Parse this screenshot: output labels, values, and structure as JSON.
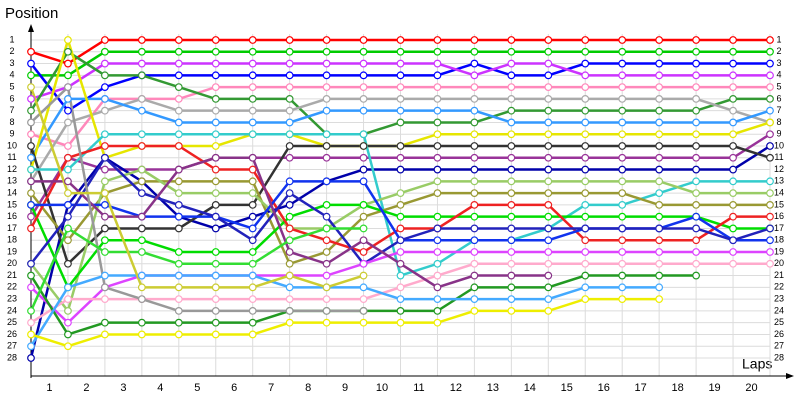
{
  "chart_data": {
    "type": "line",
    "y_label": "Position",
    "x_label": "Laps",
    "x": [
      0,
      1,
      2,
      3,
      4,
      5,
      6,
      7,
      8,
      9,
      10,
      11,
      12,
      13,
      14,
      15,
      16,
      17,
      18,
      19,
      20
    ],
    "xlim": [
      0,
      20
    ],
    "xticks": [
      1,
      2,
      3,
      4,
      5,
      6,
      7,
      8,
      9,
      10,
      11,
      12,
      13,
      14,
      15,
      16,
      17,
      18,
      19,
      20
    ],
    "ylim": [
      1,
      28
    ],
    "yticks": [
      1,
      2,
      3,
      4,
      5,
      6,
      7,
      8,
      9,
      10,
      11,
      12,
      13,
      14,
      15,
      16,
      17,
      18,
      19,
      20,
      21,
      22,
      23,
      24,
      25,
      26,
      27,
      28
    ],
    "y_reversed": true,
    "grid": true,
    "series": [
      {
        "color": "#ff0000",
        "values": [
          2,
          3,
          1,
          1,
          1,
          1,
          1,
          1,
          1,
          1,
          1,
          1,
          1,
          1,
          1,
          1,
          1,
          1,
          1,
          1,
          1
        ]
      },
      {
        "color": "#00cc00",
        "values": [
          4,
          4,
          2,
          2,
          2,
          2,
          2,
          2,
          2,
          2,
          2,
          2,
          2,
          2,
          2,
          2,
          2,
          2,
          2,
          2,
          2
        ]
      },
      {
        "color": "#0000ff",
        "values": [
          3,
          7,
          5,
          4,
          4,
          4,
          4,
          4,
          4,
          4,
          4,
          4,
          3,
          4,
          4,
          3,
          3,
          3,
          3,
          3,
          3
        ]
      },
      {
        "color": "#cc33ff",
        "values": [
          6,
          5,
          3,
          3,
          3,
          3,
          3,
          3,
          3,
          3,
          3,
          3,
          4,
          3,
          3,
          4,
          4,
          4,
          4,
          4,
          4
        ]
      },
      {
        "color": "#ff88bb",
        "values": [
          9,
          10,
          6,
          6,
          6,
          5,
          5,
          5,
          5,
          5,
          5,
          5,
          5,
          5,
          5,
          5,
          5,
          5,
          5,
          5,
          5
        ]
      },
      {
        "color": "#339933",
        "values": [
          7,
          2,
          4,
          4,
          5,
          6,
          6,
          6,
          9,
          9,
          8,
          8,
          8,
          7,
          7,
          7,
          7,
          7,
          7,
          6,
          6
        ]
      },
      {
        "color": "#aaaaaa",
        "values": [
          13,
          8,
          7,
          6,
          7,
          7,
          7,
          7,
          6,
          6,
          6,
          6,
          6,
          6,
          6,
          6,
          6,
          6,
          6,
          7,
          8
        ]
      },
      {
        "color": "#3399ff",
        "values": [
          11,
          6,
          6,
          7,
          8,
          8,
          8,
          8,
          7,
          7,
          7,
          7,
          7,
          8,
          8,
          8,
          8,
          8,
          8,
          8,
          7
        ]
      },
      {
        "color": "#e6e600",
        "values": [
          12,
          1,
          11,
          10,
          10,
          10,
          9,
          9,
          10,
          10,
          10,
          9,
          9,
          9,
          9,
          9,
          9,
          9,
          9,
          9,
          8
        ]
      },
      {
        "color": "#993399",
        "values": [
          16,
          11,
          12,
          12,
          12,
          11,
          11,
          11,
          11,
          11,
          11,
          11,
          11,
          11,
          11,
          11,
          11,
          11,
          11,
          11,
          9
        ]
      },
      {
        "color": "#0000aa",
        "values": [
          28,
          15,
          11,
          13,
          16,
          17,
          16,
          15,
          13,
          12,
          12,
          12,
          12,
          12,
          12,
          12,
          12,
          12,
          12,
          12,
          10
        ]
      },
      {
        "color": "#333333",
        "values": [
          10,
          20,
          17,
          17,
          17,
          15,
          15,
          10,
          10,
          10,
          10,
          10,
          10,
          10,
          10,
          10,
          10,
          10,
          10,
          10,
          11
        ]
      },
      {
        "color": "#33cccc",
        "values": [
          12,
          12,
          9,
          9,
          9,
          9,
          9,
          9,
          9,
          9,
          21,
          20,
          18,
          18,
          17,
          15,
          15,
          14,
          13,
          13,
          13
        ]
      },
      {
        "color": "#999933",
        "values": [
          14,
          18,
          14,
          13,
          13,
          13,
          13,
          20,
          19,
          16,
          15,
          14,
          14,
          14,
          14,
          14,
          14,
          15,
          15,
          15,
          15
        ]
      },
      {
        "color": "#99cc66",
        "values": [
          20,
          24,
          13,
          12,
          14,
          14,
          14,
          17,
          17,
          15,
          14,
          13,
          13,
          13,
          13,
          13,
          13,
          13,
          14,
          14,
          14
        ]
      },
      {
        "color": "#00dd00",
        "values": [
          15,
          22,
          18,
          18,
          19,
          19,
          19,
          16,
          15,
          15,
          16,
          16,
          16,
          16,
          16,
          16,
          16,
          16,
          16,
          17,
          17
        ]
      },
      {
        "color": "#ee2222",
        "values": [
          17,
          11,
          10,
          10,
          10,
          12,
          12,
          17,
          18,
          19,
          17,
          17,
          15,
          15,
          15,
          18,
          18,
          18,
          18,
          16,
          16
        ]
      },
      {
        "color": "#1133ee",
        "values": [
          15,
          15,
          15,
          16,
          16,
          16,
          17,
          13,
          13,
          13,
          18,
          18,
          18,
          18,
          18,
          17,
          17,
          17,
          16,
          18,
          18
        ]
      },
      {
        "color": "#2222bb",
        "values": [
          20,
          16,
          11,
          14,
          15,
          16,
          18,
          14,
          16,
          20,
          18,
          17,
          17,
          17,
          17,
          17,
          17,
          17,
          17,
          18,
          17
        ]
      },
      {
        "color": "#dd44ff",
        "values": [
          22,
          25,
          22,
          21,
          21,
          21,
          21,
          21,
          21,
          20,
          19,
          19,
          19,
          19,
          19,
          19,
          19,
          19,
          19,
          19,
          19
        ]
      },
      {
        "color": "#ffaacc",
        "values": [
          25,
          23,
          23,
          23,
          23,
          23,
          23,
          23,
          23,
          23,
          22,
          21,
          20,
          20,
          20,
          20,
          20,
          20,
          20,
          20,
          20
        ]
      },
      {
        "color": "#229922",
        "values": [
          21,
          26,
          25,
          25,
          25,
          25,
          25,
          24,
          24,
          24,
          24,
          24,
          22,
          22,
          22,
          21,
          21,
          21,
          21,
          null,
          null
        ]
      },
      {
        "color": "#44aaff",
        "values": [
          27,
          22,
          21,
          21,
          21,
          21,
          21,
          22,
          22,
          22,
          23,
          23,
          23,
          23,
          23,
          22,
          22,
          22,
          null,
          null,
          null
        ]
      },
      {
        "color": "#eeee00",
        "values": [
          26,
          27,
          26,
          26,
          26,
          26,
          26,
          25,
          25,
          25,
          25,
          25,
          24,
          24,
          24,
          23,
          23,
          23,
          null,
          null,
          null
        ]
      },
      {
        "color": "#883388",
        "values": [
          13,
          13,
          16,
          16,
          12,
          11,
          11,
          19,
          20,
          18,
          20,
          22,
          21,
          21,
          21,
          null,
          null,
          null,
          null,
          null,
          null
        ]
      },
      {
        "color": "#999999",
        "values": [
          8,
          5,
          22,
          23,
          24,
          24,
          24,
          24,
          24,
          24,
          null,
          null,
          null,
          null,
          null,
          null,
          null,
          null,
          null,
          null,
          null
        ]
      },
      {
        "color": "#33dd33",
        "values": [
          24,
          17,
          19,
          19,
          20,
          20,
          20,
          18,
          17,
          17,
          null,
          null,
          null,
          null,
          null,
          null,
          null,
          null,
          null,
          null,
          null
        ]
      },
      {
        "color": "#cccc33",
        "values": [
          5,
          14,
          14,
          22,
          22,
          22,
          22,
          21,
          22,
          21,
          null,
          null,
          null,
          null,
          null,
          null,
          null,
          null,
          null,
          null,
          null
        ]
      }
    ]
  }
}
